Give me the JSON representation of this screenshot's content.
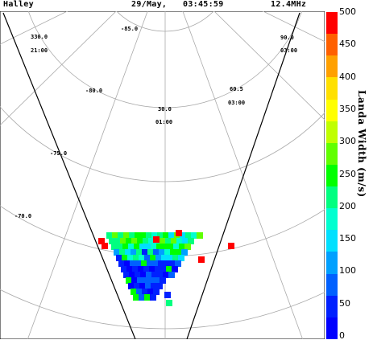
{
  "header": {
    "station": "Halley",
    "date": "29/May,",
    "time": "03:45:59",
    "frequency": "12.4MHz"
  },
  "grid_labels": {
    "lon_330": "330.0",
    "mlt_2100": "21:00",
    "lat_m85": "-85.0",
    "lon_90": "90.0",
    "mlt_0300": "03:00",
    "lat_m80": "-80.0",
    "lon_605": "60.5",
    "mlt_0500": "03:00",
    "lat_m755": "-75.0",
    "lon_300": "30.0",
    "mlt_0100": "01:00",
    "lat_m70": "-70.0"
  },
  "colorbar": {
    "title": "Landa Width (m/s)",
    "ticks": [
      "500",
      "450",
      "400",
      "350",
      "300",
      "250",
      "200",
      "150",
      "100",
      "50",
      "0"
    ],
    "colors": [
      "#ff0000",
      "#ff6000",
      "#ffa000",
      "#ffe000",
      "#ffff00",
      "#c0ff00",
      "#60ff00",
      "#00ff00",
      "#00ff80",
      "#00ffd0",
      "#00e0ff",
      "#00a0ff",
      "#0060ff",
      "#0020ff",
      "#0000ff"
    ],
    "min": 0,
    "max": 500
  }
}
